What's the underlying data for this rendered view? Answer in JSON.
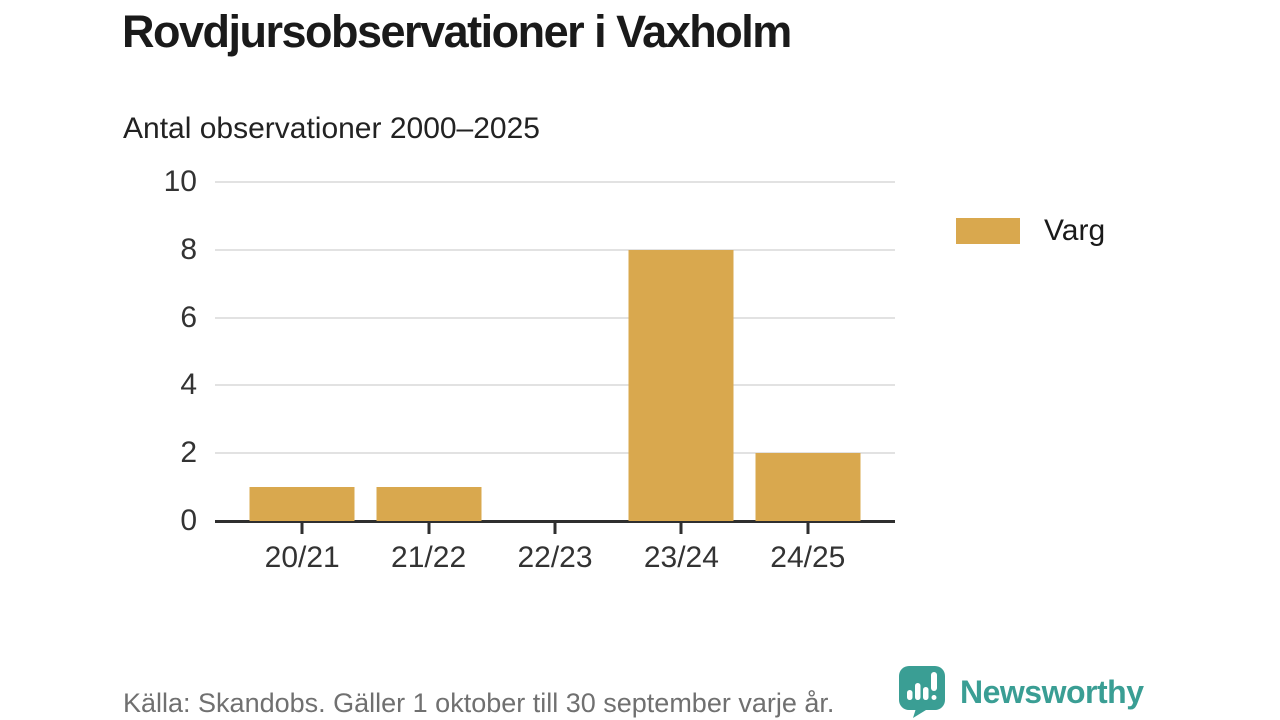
{
  "header": {
    "title": "Rovdjursobservationer i Vaxholm",
    "subtitle": "Antal observationer 2000–2025"
  },
  "legend": {
    "items": [
      {
        "label": "Varg",
        "color": "#D9A84E"
      }
    ]
  },
  "footer": {
    "source": "Källa: Skandobs. Gäller 1 oktober till 30 september varje år.",
    "brand": "Newsworthy",
    "brand_color": "#3A9E94"
  },
  "colors": {
    "bar": "#D9A84E",
    "gridline": "#e2e2e2",
    "axis": "#2f2f2f",
    "axis_text": "#333333",
    "source_text": "#707070",
    "teal": "#3A9E94"
  },
  "chart_data": {
    "type": "bar",
    "title": "Rovdjursobservationer i Vaxholm",
    "subtitle": "Antal observationer 2000–2025",
    "categories": [
      "20/21",
      "21/22",
      "22/23",
      "23/24",
      "24/25"
    ],
    "series": [
      {
        "name": "Varg",
        "color": "#D9A84E",
        "values": [
          1,
          1,
          0,
          8,
          2
        ]
      }
    ],
    "xlabel": "",
    "ylabel": "",
    "ylim": [
      0,
      10
    ],
    "yticks": [
      0,
      2,
      4,
      6,
      8,
      10
    ],
    "grid": true,
    "legend_position": "right",
    "source": "Källa: Skandobs. Gäller 1 oktober till 30 september varje år."
  }
}
